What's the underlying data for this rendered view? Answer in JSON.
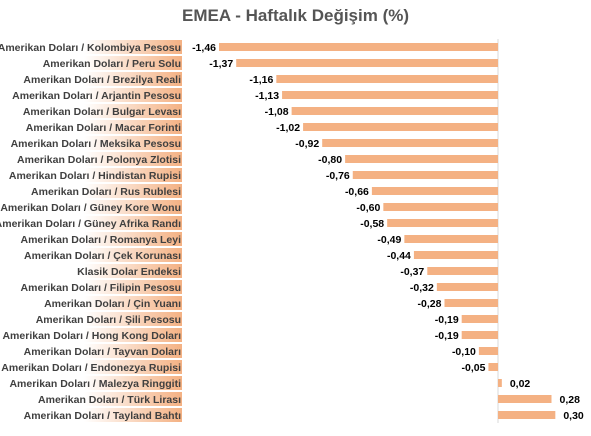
{
  "chart_data": {
    "type": "bar",
    "orientation": "horizontal",
    "title": "EMEA - Haftalık Değişim (%)",
    "xlabel": "",
    "ylabel": "",
    "xlim": [
      -1.5,
      0.32
    ],
    "grid": false,
    "legend": "none",
    "bar_color": "#f4b183",
    "label_bg_gradient": [
      "#ffffff",
      "#f4b183"
    ],
    "zero_line_color": "#d9d9d9",
    "categories": [
      "Amerikan Doları / Kolombiya Pesosu",
      "Amerikan Doları / Peru Solu",
      "Amerikan Doları / Brezilya Reali",
      "Amerikan Doları / Arjantin Pesosu",
      "Amerikan Doları / Bulgar Levası",
      "Amerikan Doları / Macar Forinti",
      "Amerikan Doları / Meksika Pesosu",
      "Amerikan Doları / Polonya Zlotisi",
      "Amerikan Doları / Hindistan Rupisi",
      "Amerikan Doları / Rus Rublesi",
      "Amerikan Doları / Güney Kore Wonu",
      "Amerikan Doları / Güney Afrika Randı",
      "Amerikan Doları / Romanya Leyi",
      "Amerikan Doları / Çek Korunası",
      "Klasik Dolar Endeksi",
      "Amerikan Doları / Filipin Pesosu",
      "Amerikan Doları / Çin Yuanı",
      "Amerikan Doları / Şili Pesosu",
      "Amerikan Doları / Hong Kong Doları",
      "Amerikan Doları / Tayvan Doları",
      "Amerikan Doları / Endonezya Rupisi",
      "Amerikan Doları / Malezya Ringgiti",
      "Amerikan Doları / Türk Lirası",
      "Amerikan Doları / Tayland Bahtı"
    ],
    "values": [
      -1.46,
      -1.37,
      -1.16,
      -1.13,
      -1.08,
      -1.02,
      -0.92,
      -0.8,
      -0.76,
      -0.66,
      -0.6,
      -0.58,
      -0.49,
      -0.44,
      -0.37,
      -0.32,
      -0.28,
      -0.19,
      -0.19,
      -0.1,
      -0.05,
      0.02,
      0.28,
      0.3
    ],
    "value_labels": [
      "-1,46",
      "-1,37",
      "-1,16",
      "-1,13",
      "-1,08",
      "-1,02",
      "-0,92",
      "-0,80",
      "-0,76",
      "-0,66",
      "-0,60",
      "-0,58",
      "-0,49",
      "-0,44",
      "-0,37",
      "-0,32",
      "-0,28",
      "-0,19",
      "-0,19",
      "-0,10",
      "-0,05",
      "0,02",
      "0,28",
      "0,30"
    ]
  }
}
